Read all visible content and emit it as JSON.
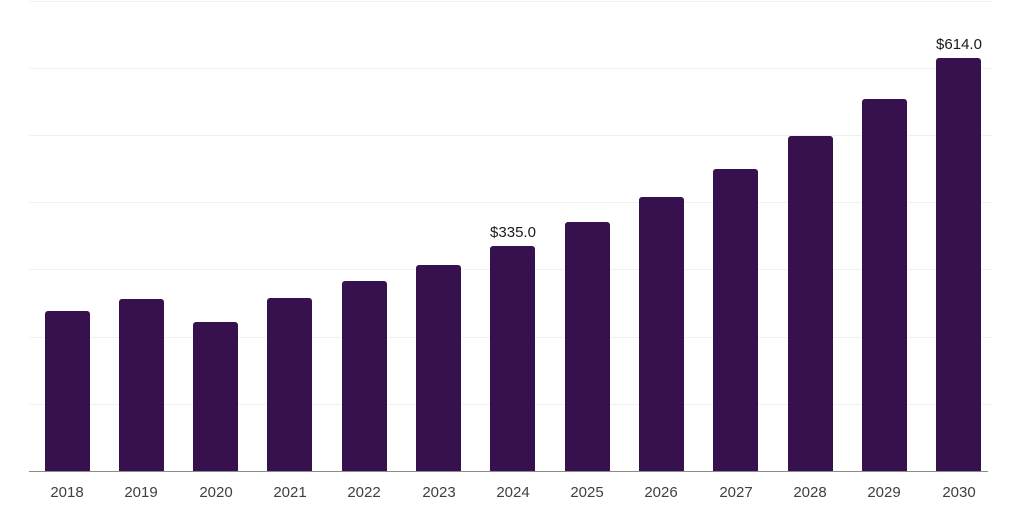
{
  "chart_data": {
    "type": "bar",
    "title": "",
    "xlabel": "",
    "ylabel": "",
    "categories": [
      "2018",
      "2019",
      "2020",
      "2021",
      "2022",
      "2023",
      "2024",
      "2025",
      "2026",
      "2027",
      "2028",
      "2029",
      "2030"
    ],
    "values": [
      238,
      256,
      222,
      258,
      282,
      307,
      335,
      370,
      408,
      449,
      498,
      553,
      614
    ],
    "data_labels": [
      "",
      "",
      "",
      "",
      "",
      "",
      "$335.0",
      "",
      "",
      "",
      "",
      "",
      "$614.0"
    ],
    "ylim": [
      0,
      700
    ],
    "grid_step": 100,
    "grid": "horizontal",
    "legend": false,
    "colors": {
      "bar": "#36114d",
      "gridline": "#f0f0f0",
      "axis_line": "#8c8c8c",
      "tick_label": "#404040",
      "data_label": "#1a1a1a",
      "background": "#ffffff"
    }
  }
}
